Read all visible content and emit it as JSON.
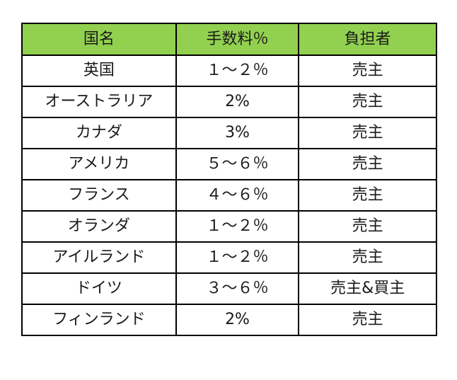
{
  "table": {
    "header_bg": "#92d050",
    "headers": [
      "国名",
      "手数料％",
      "負担者"
    ],
    "rows": [
      [
        "英国",
        "１～２％",
        "売主"
      ],
      [
        "オーストラリア",
        "2%",
        "売主"
      ],
      [
        "カナダ",
        "3%",
        "売主"
      ],
      [
        "アメリカ",
        "５～６％",
        "売主"
      ],
      [
        "フランス",
        "４～６％",
        "売主"
      ],
      [
        "オランダ",
        "１～２％",
        "売主"
      ],
      [
        "アイルランド",
        "１～２％",
        "売主"
      ],
      [
        "ドイツ",
        "３～６％",
        "売主&買主"
      ],
      [
        "フィンランド",
        "2%",
        "売主"
      ]
    ]
  }
}
